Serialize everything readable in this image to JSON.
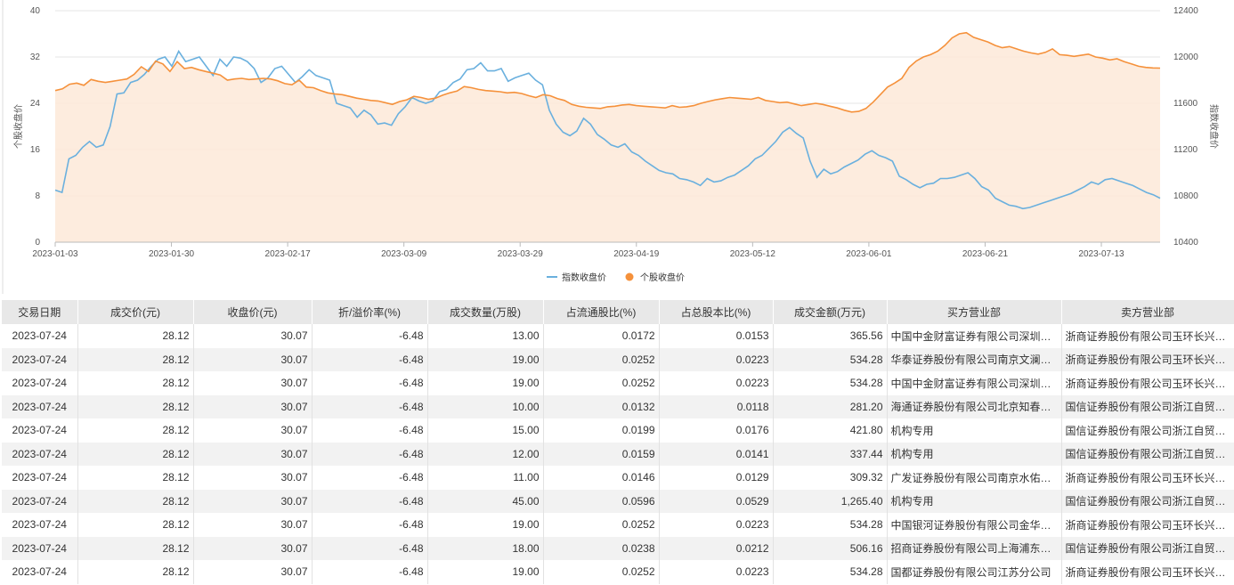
{
  "chart_data": {
    "type": "line",
    "x_ticks": [
      "2023-01-03",
      "2023-01-30",
      "2023-02-17",
      "2023-03-09",
      "2023-03-29",
      "2023-04-19",
      "2023-05-12",
      "2023-06-01",
      "2023-06-21",
      "2023-07-13"
    ],
    "y_left": {
      "label": "个股收盘价",
      "min": 0,
      "max": 40,
      "ticks": [
        0,
        8,
        16,
        24,
        32,
        40
      ]
    },
    "y_right": {
      "label": "指数收盘价",
      "min": 10400,
      "max": 12400,
      "ticks": [
        10400,
        10800,
        11200,
        11600,
        12000,
        12400
      ]
    },
    "legend": {
      "position": "bottom",
      "items": [
        "指数收盘价",
        "个股收盘价"
      ]
    },
    "colors": {
      "index": "#6ab0de",
      "stock": "#f5913b",
      "area": "#fde9d8"
    },
    "grid": true,
    "series": [
      {
        "name": "指数收盘价",
        "axis": "right",
        "values": [
          10850,
          10830,
          11120,
          11150,
          11220,
          11270,
          11220,
          11240,
          11400,
          11680,
          11690,
          11780,
          11800,
          11850,
          11920,
          11980,
          12000,
          11920,
          12050,
          11960,
          11980,
          12000,
          11920,
          11840,
          11980,
          11920,
          12000,
          11990,
          11960,
          11900,
          11780,
          11820,
          11900,
          11920,
          11850,
          11780,
          11830,
          11890,
          11840,
          11820,
          11800,
          11600,
          11580,
          11560,
          11480,
          11540,
          11500,
          11420,
          11430,
          11410,
          11510,
          11570,
          11650,
          11620,
          11600,
          11620,
          11700,
          11720,
          11780,
          11810,
          11890,
          11900,
          11950,
          11880,
          11880,
          11900,
          11790,
          11820,
          11840,
          11860,
          11800,
          11760,
          11540,
          11420,
          11350,
          11320,
          11360,
          11470,
          11420,
          11330,
          11290,
          11240,
          11220,
          11250,
          11180,
          11150,
          11100,
          11060,
          11020,
          11000,
          10990,
          10950,
          10940,
          10920,
          10890,
          10950,
          10920,
          10930,
          10960,
          10980,
          11020,
          11060,
          11120,
          11150,
          11210,
          11270,
          11350,
          11390,
          11340,
          11300,
          11100,
          10960,
          11030,
          10990,
          11010,
          11050,
          11080,
          11110,
          11160,
          11190,
          11150,
          11130,
          11100,
          10970,
          10940,
          10900,
          10870,
          10900,
          10910,
          10950,
          10950,
          10960,
          10980,
          11000,
          10950,
          10880,
          10850,
          10780,
          10750,
          10720,
          10710,
          10690,
          10700,
          10720,
          10740,
          10760,
          10780,
          10800,
          10820,
          10850,
          10880,
          10920,
          10900,
          10940,
          10950,
          10930,
          10910,
          10890,
          10860,
          10830,
          10810,
          10780
        ]
      },
      {
        "name": "个股收盘价",
        "axis": "left",
        "values": [
          26.2,
          26.5,
          27.3,
          27.5,
          27.1,
          28.1,
          27.8,
          27.6,
          27.8,
          28.0,
          28.2,
          29.0,
          30.3,
          29.5,
          31.3,
          30.8,
          29.5,
          31.2,
          30.0,
          30.2,
          29.8,
          29.5,
          29.2,
          28.9,
          28.0,
          28.2,
          28.3,
          28.1,
          28.2,
          28.3,
          28.2,
          27.9,
          27.4,
          27.2,
          28.0,
          26.8,
          26.7,
          26.2,
          25.8,
          25.6,
          25.5,
          25.2,
          24.9,
          24.7,
          24.5,
          24.4,
          24.1,
          23.8,
          24.3,
          24.6,
          25.2,
          25.0,
          24.7,
          24.9,
          25.4,
          25.8,
          26.1,
          26.9,
          26.7,
          26.4,
          26.2,
          26.1,
          26.0,
          25.8,
          25.9,
          25.7,
          25.3,
          25.0,
          25.5,
          25.3,
          24.8,
          24.5,
          23.8,
          23.5,
          23.3,
          23.2,
          23.1,
          23.4,
          23.5,
          23.7,
          23.8,
          23.6,
          23.5,
          23.4,
          23.3,
          23.2,
          23.6,
          23.3,
          23.4,
          23.6,
          24.0,
          24.3,
          24.6,
          24.8,
          25.0,
          24.9,
          24.8,
          24.7,
          25.0,
          24.5,
          24.3,
          24.1,
          24.2,
          23.9,
          23.6,
          23.8,
          24.0,
          23.8,
          23.5,
          23.2,
          22.8,
          22.5,
          22.6,
          23.1,
          24.2,
          25.5,
          26.8,
          27.5,
          28.3,
          30.2,
          31.3,
          32.0,
          32.4,
          33.0,
          34.0,
          35.3,
          36.0,
          36.2,
          35.4,
          35.0,
          34.6,
          34.0,
          33.6,
          33.8,
          33.4,
          33.0,
          32.7,
          32.5,
          32.8,
          33.4,
          32.4,
          32.3,
          32.1,
          32.3,
          32.5,
          32.0,
          31.8,
          31.5,
          31.7,
          31.2,
          30.8,
          30.4,
          30.2,
          30.1,
          30.07
        ]
      }
    ]
  },
  "table": {
    "headers": [
      "交易日期",
      "成交价(元)",
      "收盘价(元)",
      "折/溢价率(%)",
      "成交数量(万股)",
      "占流通股比(%)",
      "占总股本比(%)",
      "成交金额(万元)",
      "买方营业部",
      "卖方营业部"
    ],
    "rows": [
      [
        "2023-07-24",
        "28.12",
        "30.07",
        "-6.48",
        "13.00",
        "0.0172",
        "0.0153",
        "365.56",
        "中国中金财富证券有限公司深圳分公司",
        "浙商证券股份有限公司玉环长兴路证券营业部"
      ],
      [
        "2023-07-24",
        "28.12",
        "30.07",
        "-6.48",
        "19.00",
        "0.0252",
        "0.0223",
        "534.28",
        "华泰证券股份有限公司南京文澜路证券营业部",
        "浙商证券股份有限公司玉环长兴路证券营业部"
      ],
      [
        "2023-07-24",
        "28.12",
        "30.07",
        "-6.48",
        "19.00",
        "0.0252",
        "0.0223",
        "534.28",
        "中国中金财富证券有限公司深圳分公司",
        "浙商证券股份有限公司玉环长兴路证券营业部"
      ],
      [
        "2023-07-24",
        "28.12",
        "30.07",
        "-6.48",
        "10.00",
        "0.0132",
        "0.0118",
        "281.20",
        "海通证券股份有限公司北京知春路证券营业部",
        "国信证券股份有限公司浙江自贸区分公司"
      ],
      [
        "2023-07-24",
        "28.12",
        "30.07",
        "-6.48",
        "15.00",
        "0.0199",
        "0.0176",
        "421.80",
        "机构专用",
        "国信证券股份有限公司浙江自贸区分公司"
      ],
      [
        "2023-07-24",
        "28.12",
        "30.07",
        "-6.48",
        "12.00",
        "0.0159",
        "0.0141",
        "337.44",
        "机构专用",
        "国信证券股份有限公司浙江自贸区分公司"
      ],
      [
        "2023-07-24",
        "28.12",
        "30.07",
        "-6.48",
        "11.00",
        "0.0146",
        "0.0129",
        "309.32",
        "广发证券股份有限公司南京水佑岗证券营业部",
        "浙商证券股份有限公司玉环长兴路证券营业部"
      ],
      [
        "2023-07-24",
        "28.12",
        "30.07",
        "-6.48",
        "45.00",
        "0.0596",
        "0.0529",
        "1,265.40",
        "机构专用",
        "国信证券股份有限公司浙江自贸区分公司"
      ],
      [
        "2023-07-24",
        "28.12",
        "30.07",
        "-6.48",
        "19.00",
        "0.0252",
        "0.0223",
        "534.28",
        "中国银河证券股份有限公司金华证券营业部",
        "浙商证券股份有限公司玉环长兴路证券营业部"
      ],
      [
        "2023-07-24",
        "28.12",
        "30.07",
        "-6.48",
        "18.00",
        "0.0238",
        "0.0212",
        "506.16",
        "招商证券股份有限公司上海浦东新区证券营业部",
        "国信证券股份有限公司浙江自贸区分公司"
      ],
      [
        "2023-07-24",
        "28.12",
        "30.07",
        "-6.48",
        "19.00",
        "0.0252",
        "0.0223",
        "534.28",
        "国都证券股份有限公司江苏分公司",
        "浙商证券股份有限公司玉环长兴路证券营业部"
      ]
    ]
  }
}
